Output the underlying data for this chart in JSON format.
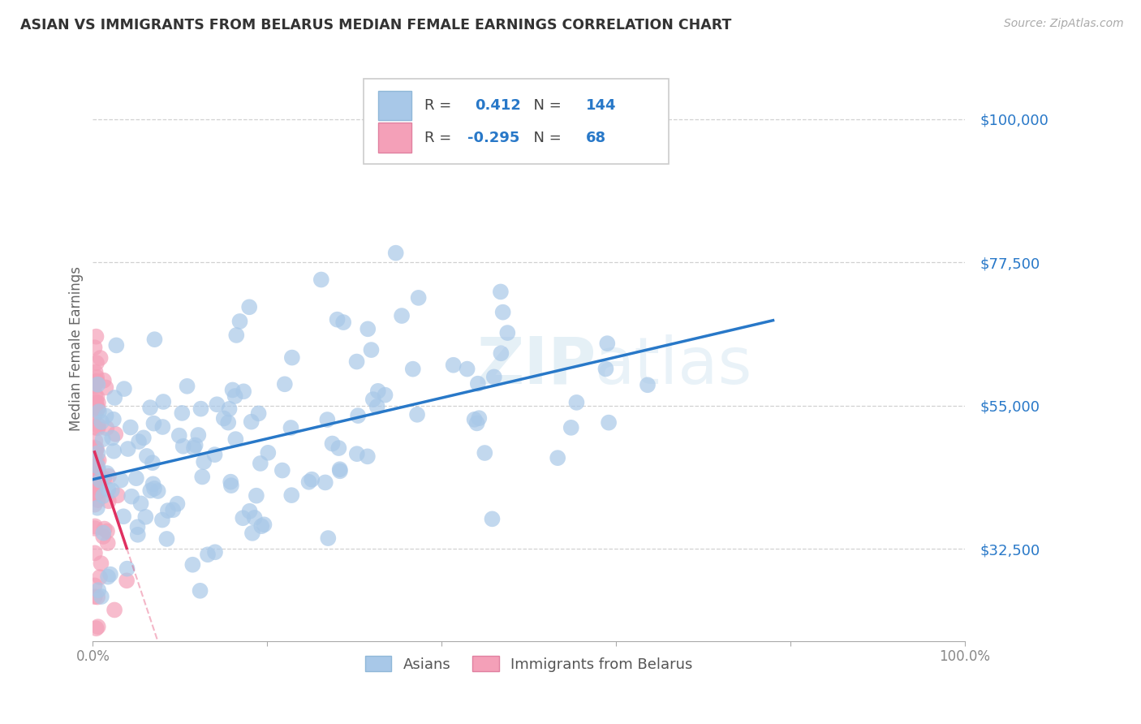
{
  "title": "ASIAN VS IMMIGRANTS FROM BELARUS MEDIAN FEMALE EARNINGS CORRELATION CHART",
  "source": "Source: ZipAtlas.com",
  "ylabel": "Median Female Earnings",
  "xlim": [
    0,
    1
  ],
  "ylim": [
    18000,
    110000
  ],
  "yticks": [
    32500,
    55000,
    77500,
    100000
  ],
  "ytick_labels": [
    "$32,500",
    "$55,000",
    "$77,500",
    "$100,000"
  ],
  "xticks": [
    0.0,
    0.2,
    0.4,
    0.6,
    0.8,
    1.0
  ],
  "xtick_labels": [
    "0.0%",
    "",
    "",
    "",
    "",
    "100.0%"
  ],
  "background_color": "#ffffff",
  "grid_color": "#cccccc",
  "asian_color": "#a8c8e8",
  "belarus_color": "#f4a0b8",
  "asian_line_color": "#2878c8",
  "belarus_line_color": "#e03060",
  "legend_R_asian": "0.412",
  "legend_N_asian": "144",
  "legend_R_belarus": "-0.295",
  "legend_N_belarus": "68",
  "asian_seed": 42,
  "belarus_seed": 7,
  "asian_R": 0.412,
  "belarus_R": -0.295,
  "asian_N": 144,
  "belarus_N": 68
}
